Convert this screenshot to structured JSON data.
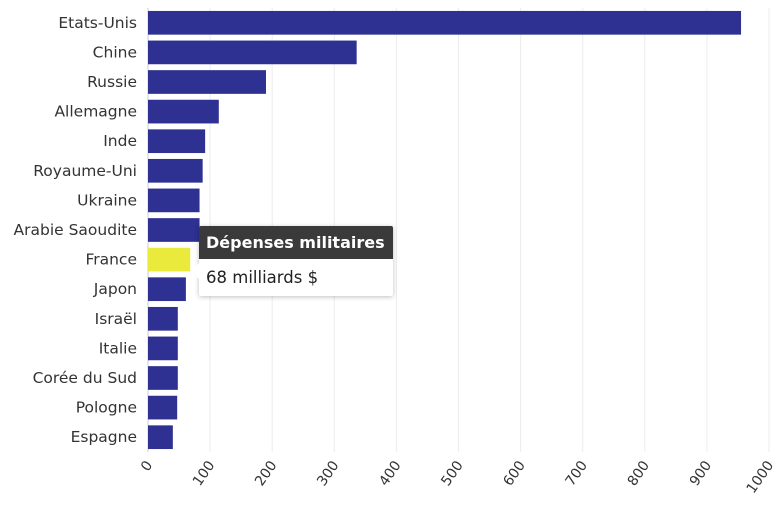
{
  "chart_data": {
    "type": "bar",
    "orientation": "horizontal",
    "categories": [
      "Etats-Unis",
      "Chine",
      "Russie",
      "Allemagne",
      "Inde",
      "Royaume-Uni",
      "Ukraine",
      "Arabie Saoudite",
      "France",
      "Japon",
      "Israël",
      "Italie",
      "Corée du Sud",
      "Pologne",
      "Espagne"
    ],
    "values": [
      955,
      336,
      190,
      114,
      92,
      88,
      83,
      83,
      68,
      61,
      48,
      48,
      48,
      47,
      40
    ],
    "xlim": [
      0,
      1000
    ],
    "xticks": [
      "0",
      "100",
      "200",
      "300",
      "400",
      "500",
      "600",
      "700",
      "800",
      "900",
      "1000"
    ],
    "grid": true,
    "bar_color": "#2e3092",
    "highlight_color": "#eaea3c",
    "highlight_category": "France"
  },
  "tooltip": {
    "title": "Dépenses militaires",
    "value": "68 milliards $"
  }
}
